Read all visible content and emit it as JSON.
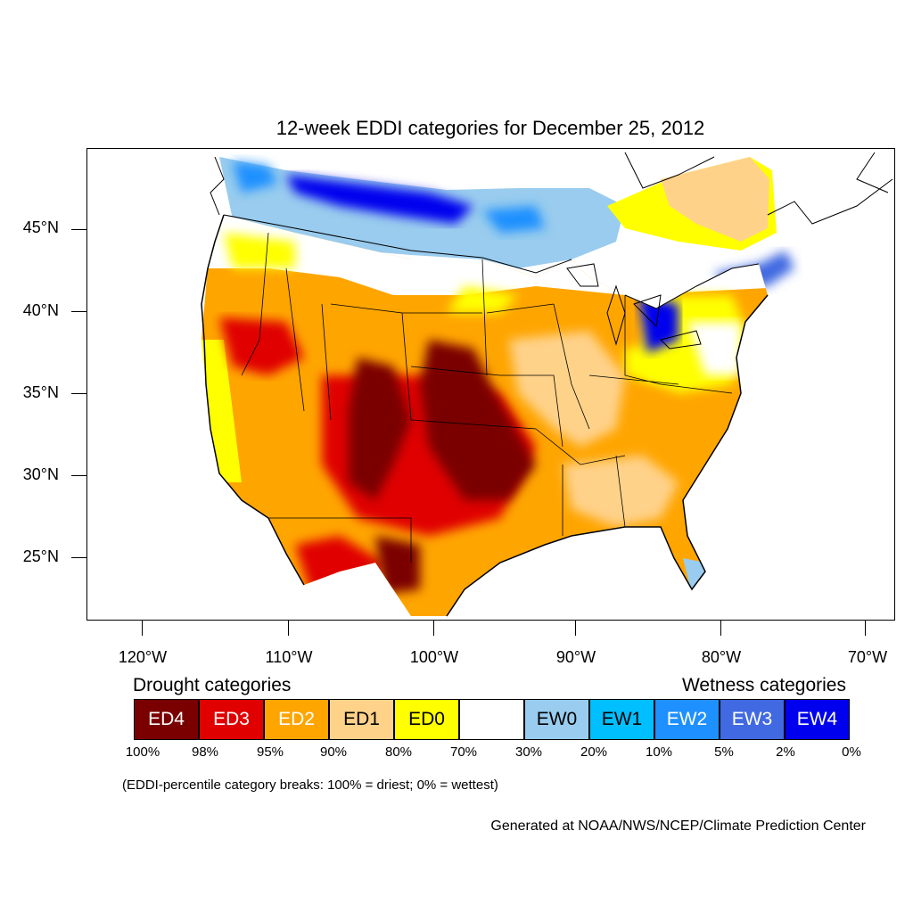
{
  "title": "12-week EDDI categories for December 25, 2012",
  "colors": {
    "ED4": "#7a0000",
    "ED3": "#e00000",
    "ED2": "#ffa500",
    "ED1": "#ffd28a",
    "ED0": "#ffff00",
    "Normal": "#ffffff",
    "EW0": "#99ccee",
    "EW1": "#00bfff",
    "EW2": "#1e90ff",
    "EW3": "#4169e1",
    "EW4": "#0000ee"
  },
  "map": {
    "projection": "lambert-conformal",
    "lat_ticks": [
      "45°N",
      "40°N",
      "35°N",
      "30°N",
      "25°N"
    ],
    "lon_ticks": [
      "120°W",
      "110°W",
      "100°W",
      "90°W",
      "80°W",
      "70°W"
    ]
  },
  "legend": {
    "drought_heading": "Drought categories",
    "wetness_heading": "Wetness categories",
    "categories": [
      {
        "label": "ED4",
        "color": "#7a0000",
        "text_color": "#ffffff"
      },
      {
        "label": "ED3",
        "color": "#e00000",
        "text_color": "#ffffff"
      },
      {
        "label": "ED2",
        "color": "#ffa500",
        "text_color": "#ffffff"
      },
      {
        "label": "ED1",
        "color": "#ffd28a",
        "text_color": "#000000"
      },
      {
        "label": "ED0",
        "color": "#ffff00",
        "text_color": "#000000"
      },
      {
        "label": "",
        "color": "#ffffff",
        "text_color": "#000000"
      },
      {
        "label": "EW0",
        "color": "#99ccee",
        "text_color": "#000000"
      },
      {
        "label": "EW1",
        "color": "#00bfff",
        "text_color": "#000000"
      },
      {
        "label": "EW2",
        "color": "#1e90ff",
        "text_color": "#ffffff"
      },
      {
        "label": "EW3",
        "color": "#4169e1",
        "text_color": "#ffffff"
      },
      {
        "label": "EW4",
        "color": "#0000ee",
        "text_color": "#ffffff"
      }
    ],
    "percentiles": [
      "100%",
      "98%",
      "95%",
      "90%",
      "80%",
      "70%",
      "30%",
      "20%",
      "10%",
      "5%",
      "2%",
      "0%"
    ]
  },
  "footnote": "(EDDI-percentile category breaks: 100% = driest; 0% = wettest)",
  "credit": "Generated at NOAA/NWS/NCEP/Climate Prediction Center"
}
